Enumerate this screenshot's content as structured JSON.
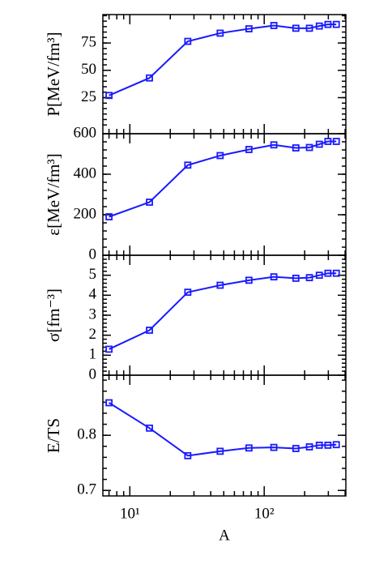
{
  "chart_data": [
    {
      "type": "line",
      "y_label": "P[MeV/fm³]",
      "ylim": [
        -8,
        101
      ],
      "yticks": [
        25,
        50,
        75
      ],
      "series": [
        {
          "color": "#1a1aff",
          "values": [
            27,
            43,
            76.5,
            84,
            88,
            91,
            88.5,
            88.5,
            90.5,
            92,
            92
          ]
        }
      ]
    },
    {
      "type": "line",
      "y_label": "ε[MeV/fm³]",
      "ylim": [
        0,
        600
      ],
      "yticks": [
        0,
        200,
        400,
        600
      ],
      "series": [
        {
          "color": "#1a1aff",
          "values": [
            190,
            262,
            445,
            492,
            522,
            545,
            530,
            532,
            548,
            562,
            562
          ]
        }
      ]
    },
    {
      "type": "line",
      "y_label": "σ[fm⁻³]",
      "ylim": [
        0,
        6
      ],
      "yticks": [
        0,
        1,
        2,
        3,
        4,
        5
      ],
      "series": [
        {
          "color": "#1a1aff",
          "values": [
            1.3,
            2.25,
            4.15,
            4.5,
            4.75,
            4.92,
            4.85,
            4.88,
            5.0,
            5.1,
            5.1
          ]
        }
      ]
    },
    {
      "type": "line",
      "y_label": "E/TS",
      "x_label": "A",
      "ylim": [
        0.69,
        0.909
      ],
      "yticks": [
        0.7,
        0.8
      ],
      "x": [
        7,
        14,
        27,
        47,
        77,
        118,
        172,
        217,
        257,
        298,
        344
      ],
      "xlim": [
        6.3,
        405
      ],
      "log_x": true,
      "xticks": [
        {
          "value": 10,
          "label": "10¹"
        },
        {
          "value": 100,
          "label": "10²"
        }
      ],
      "series": [
        {
          "color": "#1a1aff",
          "values": [
            0.859,
            0.813,
            0.763,
            0.771,
            0.777,
            0.778,
            0.776,
            0.779,
            0.782,
            0.782,
            0.783
          ]
        }
      ]
    }
  ]
}
